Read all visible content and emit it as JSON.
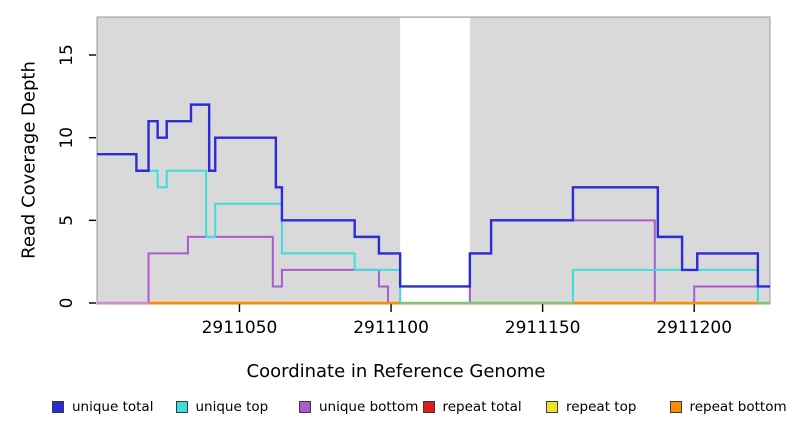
{
  "chart_data": {
    "type": "line",
    "subtype": "step-coverage-plot",
    "title": "",
    "xlabel": "Coordinate in Reference Genome",
    "ylabel": "Read Coverage Depth",
    "xlim": [
      2911003,
      2911225
    ],
    "ylim": [
      0,
      17.3
    ],
    "x_ticks": [
      2911050,
      2911100,
      2911150,
      2911200
    ],
    "y_ticks": [
      0,
      5,
      10,
      15
    ],
    "grid": "off",
    "legend_position": "bottom",
    "panel_bg": "#d9d9d9",
    "panel_border": "#999999",
    "masked_region": {
      "from": 2911103,
      "to": 2911126,
      "color": "#ffffff"
    },
    "series": [
      {
        "name": "unique total",
        "color": "#2b2bd8",
        "line_width": 2.4,
        "steps": [
          [
            2911003,
            9
          ],
          [
            2911016,
            8
          ],
          [
            2911020,
            11
          ],
          [
            2911023,
            10
          ],
          [
            2911026,
            11
          ],
          [
            2911034,
            12
          ],
          [
            2911040,
            8
          ],
          [
            2911042,
            10
          ],
          [
            2911062,
            7
          ],
          [
            2911064,
            5
          ],
          [
            2911088,
            4
          ],
          [
            2911096,
            3
          ],
          [
            2911103,
            1
          ],
          [
            2911126,
            3
          ],
          [
            2911133,
            5
          ],
          [
            2911160,
            7
          ],
          [
            2911188,
            4
          ],
          [
            2911196,
            2
          ],
          [
            2911201,
            3
          ],
          [
            2911221,
            1
          ]
        ],
        "end": 2911225
      },
      {
        "name": "unique top",
        "color": "#3edddd",
        "line_width": 2,
        "steps": [
          [
            2911003,
            9
          ],
          [
            2911016,
            8
          ],
          [
            2911023,
            7
          ],
          [
            2911026,
            8
          ],
          [
            2911039,
            4
          ],
          [
            2911042,
            6
          ],
          [
            2911064,
            3
          ],
          [
            2911088,
            2
          ],
          [
            2911103,
            0
          ],
          [
            2911160,
            2
          ],
          [
            2911221,
            0
          ]
        ],
        "end": 2911225
      },
      {
        "name": "unique bottom",
        "color": "#a95bd0",
        "line_width": 2,
        "steps": [
          [
            2911003,
            0
          ],
          [
            2911020,
            3
          ],
          [
            2911033,
            4
          ],
          [
            2911061,
            1
          ],
          [
            2911064,
            2
          ],
          [
            2911096,
            1
          ],
          [
            2911099,
            0
          ],
          [
            2911126,
            3
          ],
          [
            2911133,
            5
          ],
          [
            2911187,
            0
          ],
          [
            2911200,
            1
          ]
        ],
        "end": 2911225
      },
      {
        "name": "repeat total",
        "color": "#dd1c1c",
        "line_width": 2,
        "steps": [
          [
            2911003,
            0
          ]
        ],
        "end": 2911225
      },
      {
        "name": "repeat top",
        "color": "#f2e424",
        "line_width": 2,
        "steps": [
          [
            2911003,
            0
          ]
        ],
        "end": 2911225
      },
      {
        "name": "repeat bottom",
        "color": "#ff8c00",
        "line_width": 2.2,
        "steps": [
          [
            2911003,
            0
          ]
        ],
        "end": 2911225
      }
    ],
    "baseline_segments": [
      {
        "from": 2911003,
        "to": 2911020,
        "color": "#cf8cd8",
        "meaning": "unique bottom at 0"
      },
      {
        "from": 2911020,
        "to": 2911103,
        "color": "#ff8c00",
        "meaning": "repeat bottom at 0"
      },
      {
        "from": 2911103,
        "to": 2911160,
        "color": "#7cc87c",
        "meaning": "overlapping series at 0"
      },
      {
        "from": 2911160,
        "to": 2911221,
        "color": "#ff8c00",
        "meaning": "repeat bottom at 0"
      },
      {
        "from": 2911221,
        "to": 2911225,
        "color": "#7cc87c",
        "meaning": "overlapping series at 0"
      }
    ]
  }
}
